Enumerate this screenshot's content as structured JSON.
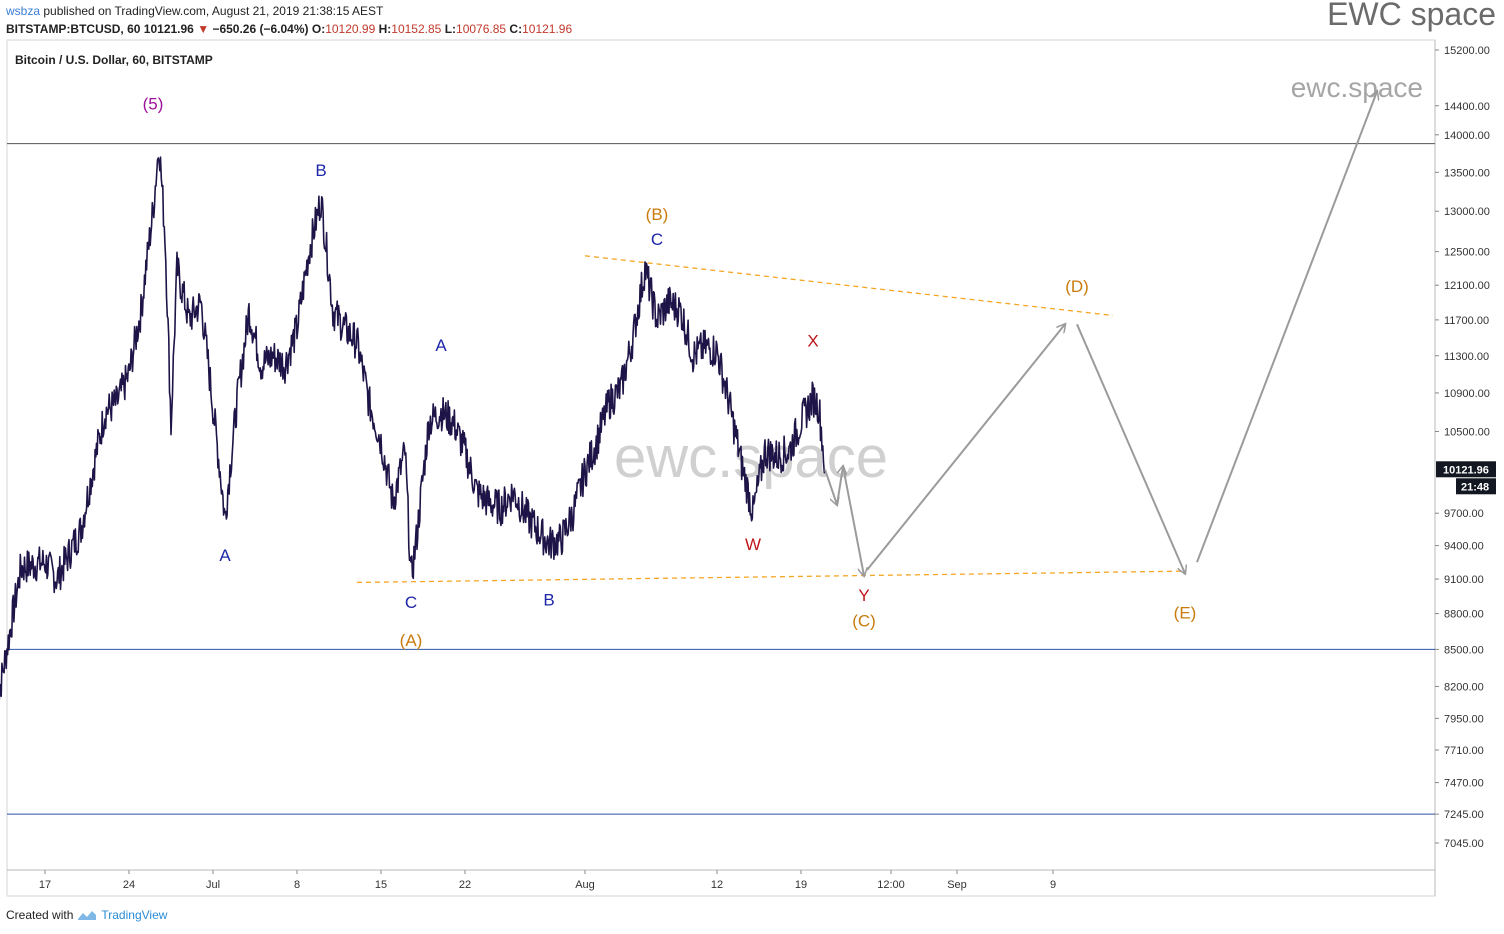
{
  "header": {
    "published_user": "wsbza",
    "published_text": "published on TradingView.com, August 21, 2019 21:38:15 AEST",
    "symbol": "BITSTAMP:BTCUSD, 60",
    "last": "10121.96",
    "change": "−650.26 (−6.04%)",
    "o_label": "O:",
    "o_value": "10120.99",
    "h_label": "H:",
    "h_value": "10152.85",
    "l_label": "L:",
    "l_value": "10076.85",
    "c_label": "C:",
    "c_value": "10121.96"
  },
  "brand": {
    "top_right": "EWC space",
    "chart_watermark": "ewc.space",
    "center_watermark": "ewc.space"
  },
  "footer": {
    "created_with": "Created with",
    "tradingview": "TradingView"
  },
  "colors": {
    "candles": "#1f1447",
    "navy": "#1d27a8",
    "orange": "#c97b0c",
    "purple": "#a0129b",
    "red": "#c0161b",
    "arrow": "#9b9b9b",
    "hline": "#000000",
    "blueline": "#2c55a8",
    "dashed": "#f5a623",
    "price_tag": "#131722"
  },
  "chart_data": {
    "type": "line",
    "title": "Bitcoin / U.S. Dollar, 60, BITSTAMP",
    "y_scale": "log",
    "ylim": [
      6900,
      15400
    ],
    "y_ticks": [
      "15200.00",
      "14400.00",
      "14000.00",
      "13500.00",
      "13000.00",
      "12500.00",
      "12100.00",
      "11700.00",
      "11300.00",
      "10900.00",
      "10500.00",
      "9700.00",
      "9400.00",
      "9100.00",
      "8800.00",
      "8500.00",
      "8200.00",
      "7950.00",
      "7710.00",
      "7470.00",
      "7245.00",
      "7045.00"
    ],
    "x_ticks": [
      "17",
      "24",
      "Jul",
      "8",
      "15",
      "22",
      "Aug",
      "12",
      "19",
      "12:00",
      "Sep",
      "9"
    ],
    "last_price_tag": "10121.96",
    "countdown_tag": "21:48",
    "price_path": [
      [
        "2019-06-13",
        8050
      ],
      [
        "2019-06-14",
        8600
      ],
      [
        "2019-06-15",
        9200
      ],
      [
        "2019-06-17",
        9250
      ],
      [
        "2019-06-18",
        9100
      ],
      [
        "2019-06-20",
        9550
      ],
      [
        "2019-06-22",
        10700
      ],
      [
        "2019-06-23",
        10800
      ],
      [
        "2019-06-24",
        11100
      ],
      [
        "2019-06-25",
        11800
      ],
      [
        "2019-06-26",
        13000
      ],
      [
        "2019-06-26T12:00",
        13880
      ],
      [
        "2019-06-27",
        12700
      ],
      [
        "2019-06-27T12:00",
        10550
      ],
      [
        "2019-06-28",
        12300
      ],
      [
        "2019-06-29",
        11700
      ],
      [
        "2019-06-30",
        11900
      ],
      [
        "2019-07-01",
        10750
      ],
      [
        "2019-07-02",
        9650
      ],
      [
        "2019-07-03",
        10800
      ],
      [
        "2019-07-04",
        11800
      ],
      [
        "2019-07-05",
        11200
      ],
      [
        "2019-07-06",
        11300
      ],
      [
        "2019-07-07",
        11200
      ],
      [
        "2019-07-08",
        11600
      ],
      [
        "2019-07-09",
        12500
      ],
      [
        "2019-07-10",
        13150
      ],
      [
        "2019-07-11",
        11800
      ],
      [
        "2019-07-12",
        11600
      ],
      [
        "2019-07-13",
        11450
      ],
      [
        "2019-07-14",
        10800
      ],
      [
        "2019-07-15",
        10400
      ],
      [
        "2019-07-16",
        9800
      ],
      [
        "2019-07-17",
        10300
      ],
      [
        "2019-07-17T12:00",
        9100
      ],
      [
        "2019-07-18",
        9500
      ],
      [
        "2019-07-19",
        10600
      ],
      [
        "2019-07-20",
        10700
      ],
      [
        "2019-07-21",
        10600
      ],
      [
        "2019-07-22",
        10300
      ],
      [
        "2019-07-23",
        9900
      ],
      [
        "2019-07-24",
        9800
      ],
      [
        "2019-07-25",
        9750
      ],
      [
        "2019-07-26",
        9900
      ],
      [
        "2019-07-27",
        9700
      ],
      [
        "2019-07-28",
        9550
      ],
      [
        "2019-07-29",
        9420
      ],
      [
        "2019-07-30",
        9450
      ],
      [
        "2019-07-31",
        9700
      ],
      [
        "2019-08-01",
        10100
      ],
      [
        "2019-08-02",
        10400
      ],
      [
        "2019-08-03",
        10800
      ],
      [
        "2019-08-04",
        10950
      ],
      [
        "2019-08-05",
        11500
      ],
      [
        "2019-08-06",
        12300
      ],
      [
        "2019-08-07",
        11700
      ],
      [
        "2019-08-08",
        11900
      ],
      [
        "2019-08-09",
        11800
      ],
      [
        "2019-08-10",
        11300
      ],
      [
        "2019-08-11",
        11400
      ],
      [
        "2019-08-12",
        11350
      ],
      [
        "2019-08-13",
        10800
      ],
      [
        "2019-08-14",
        10200
      ],
      [
        "2019-08-15",
        9700
      ],
      [
        "2019-08-16",
        10300
      ],
      [
        "2019-08-17",
        10250
      ],
      [
        "2019-08-18",
        10300
      ],
      [
        "2019-08-19",
        10600
      ],
      [
        "2019-08-20",
        10850
      ],
      [
        "2019-08-20T12:00",
        10750
      ],
      [
        "2019-08-21",
        10121
      ]
    ],
    "projection_arrows": [
      [
        [
          "2019-08-21",
          10121
        ],
        [
          "2019-08-22",
          9780
        ]
      ],
      [
        [
          "2019-08-22",
          9780
        ],
        [
          "2019-08-22T12:00",
          10150
        ]
      ],
      [
        [
          "2019-08-22T12:00",
          10150
        ],
        [
          "2019-08-24T06:00",
          9130
        ]
      ],
      [
        [
          "2019-08-24T12:00",
          9180
        ],
        [
          "2019-09-10",
          11650
        ]
      ],
      [
        [
          "2019-09-11",
          11650
        ],
        [
          "2019-09-20",
          9150
        ]
      ],
      [
        [
          "2019-09-21",
          9250
        ],
        [
          "2019-10-06",
          14600
        ]
      ]
    ],
    "triangle_lines": [
      [
        [
          "2019-07-13",
          9070
        ],
        [
          "2019-09-20",
          9170
        ]
      ],
      [
        [
          "2019-08-01",
          12450
        ],
        [
          "2019-09-14",
          11750
        ]
      ]
    ],
    "horizontal_lines": [
      13880,
      8500,
      7245
    ],
    "wave_labels": [
      {
        "text": "(5)",
        "color": "purple",
        "x": "2019-06-26",
        "y": 14350
      },
      {
        "text": "A",
        "color": "navy",
        "x": "2019-07-02",
        "y": 9260
      },
      {
        "text": "B",
        "color": "navy",
        "x": "2019-07-10",
        "y": 13450
      },
      {
        "text": "A",
        "color": "navy",
        "x": "2019-07-20",
        "y": 11350
      },
      {
        "text": "C",
        "color": "navy",
        "x": "2019-07-17T12:00",
        "y": 8850
      },
      {
        "text": "(A)",
        "color": "orange",
        "x": "2019-07-17T12:00",
        "y": 8530
      },
      {
        "text": "B",
        "color": "navy",
        "x": "2019-07-29",
        "y": 8870
      },
      {
        "text": "(B)",
        "color": "orange",
        "x": "2019-08-07",
        "y": 12890
      },
      {
        "text": "C",
        "color": "navy",
        "x": "2019-08-07",
        "y": 12580
      },
      {
        "text": "W",
        "color": "red",
        "x": "2019-08-15",
        "y": 9360
      },
      {
        "text": "X",
        "color": "red",
        "x": "2019-08-20",
        "y": 11400
      },
      {
        "text": "Y",
        "color": "red",
        "x": "2019-08-24T06:00",
        "y": 8910
      },
      {
        "text": "(C)",
        "color": "orange",
        "x": "2019-08-24T06:00",
        "y": 8690
      },
      {
        "text": "(D)",
        "color": "orange",
        "x": "2019-09-11",
        "y": 12020
      },
      {
        "text": "(E)",
        "color": "orange",
        "x": "2019-09-20",
        "y": 8760
      }
    ]
  }
}
